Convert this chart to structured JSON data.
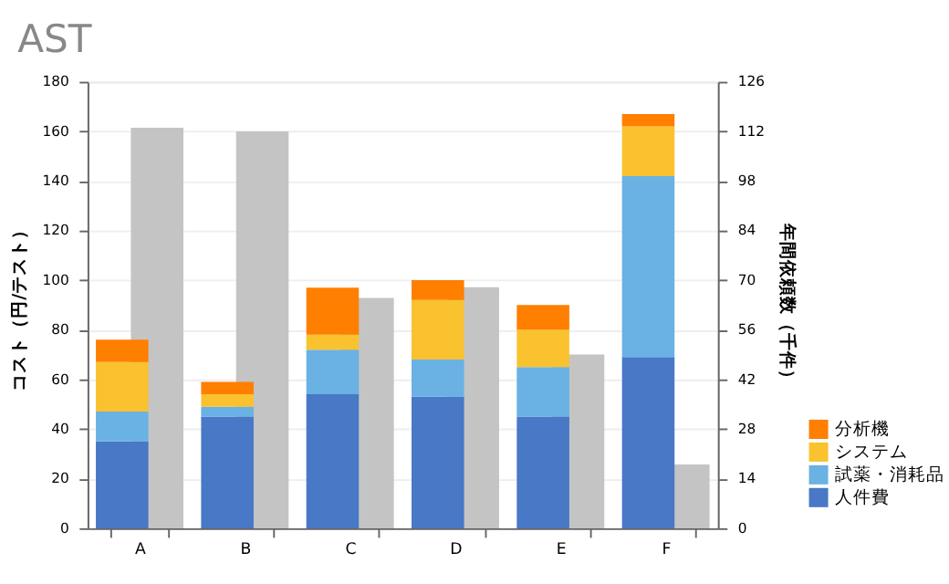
{
  "chart_data": {
    "type": "bar",
    "title": "AST",
    "ylabel": "コスト（円/テスト）",
    "y2label": "年間依頼数（千件）",
    "categories": [
      "A",
      "B",
      "C",
      "D",
      "E",
      "F"
    ],
    "stacked": true,
    "series": [
      {
        "name": "人件費",
        "color": "#4878c6",
        "values": [
          35,
          45,
          54,
          53,
          45,
          69
        ]
      },
      {
        "name": "試薬・消耗品",
        "color": "#6ab1e4",
        "values": [
          12,
          4,
          18,
          15,
          20,
          73
        ]
      },
      {
        "name": "システム",
        "color": "#f9c22e",
        "values": [
          20,
          5,
          6,
          24,
          15,
          20
        ]
      },
      {
        "name": "分析機",
        "color": "#ff7f00",
        "values": [
          9,
          5,
          19,
          8,
          10,
          5
        ]
      },
      {
        "color": "#c4c4c4",
        "axis": "y2",
        "values": [
          113,
          112,
          65,
          68,
          49,
          18
        ]
      }
    ],
    "ylim": [
      0,
      180
    ],
    "yticks": [
      0,
      20,
      40,
      60,
      80,
      100,
      120,
      140,
      160,
      180
    ],
    "y2lim": [
      0,
      126
    ],
    "y2ticks": [
      0,
      14,
      28,
      42,
      56,
      70,
      84,
      98,
      112,
      126
    ],
    "grid": "y",
    "legend": "bottom right"
  }
}
